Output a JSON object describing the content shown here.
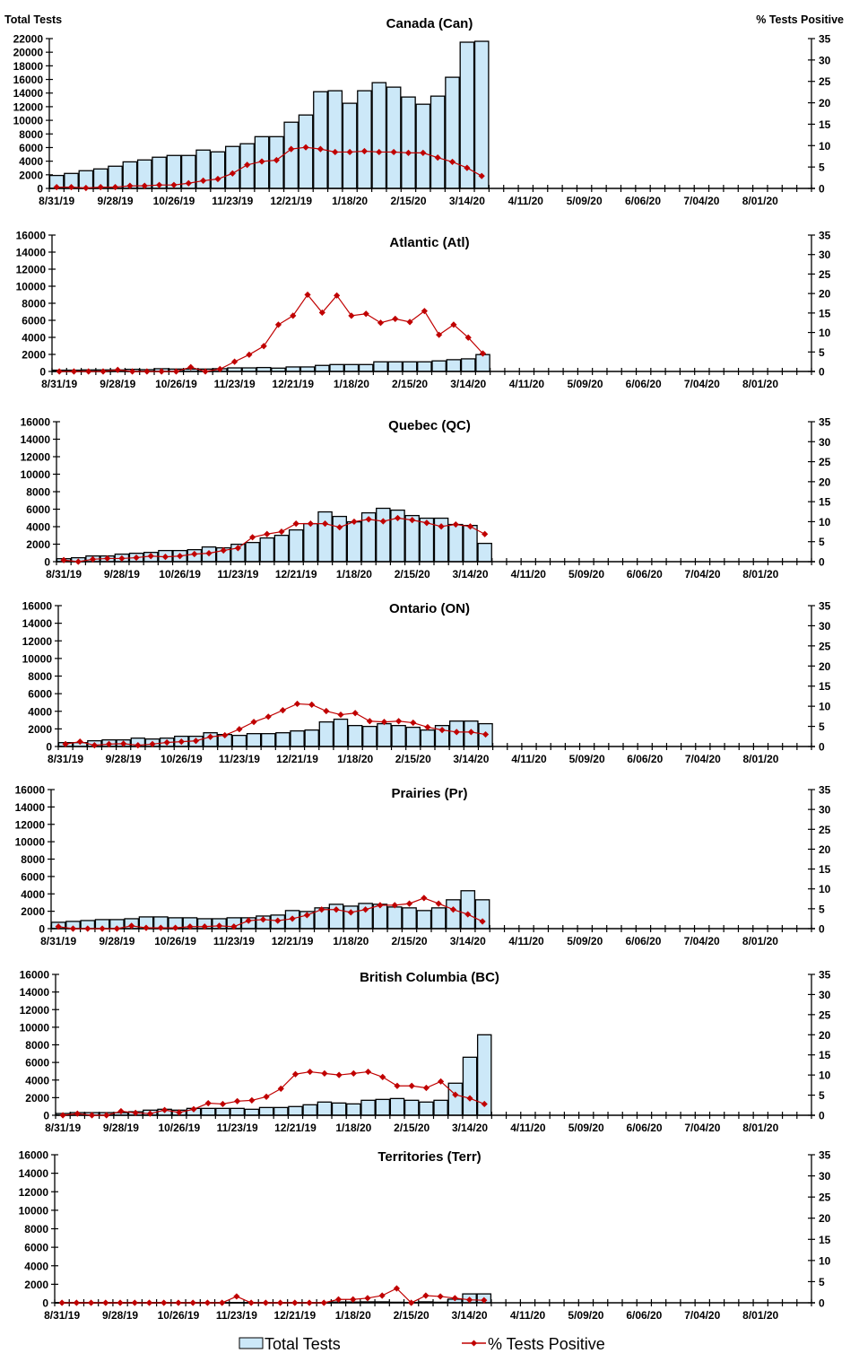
{
  "chart_data": {
    "type": "bar",
    "combo": "bar+line (dual axis)",
    "left_axis_title": "Total Tests",
    "right_axis_title": "% Tests Positive",
    "x_tick_labels": [
      "8/31/19",
      "9/28/19",
      "10/26/19",
      "11/23/19",
      "12/21/19",
      "1/18/20",
      "2/15/20",
      "3/14/20",
      "4/11/20",
      "5/09/20",
      "6/06/20",
      "7/04/20",
      "8/01/20"
    ],
    "x_week_count": 52,
    "x_label_every_weeks": 4,
    "weeks_with_data": 30,
    "right_ylim": [
      0,
      35
    ],
    "right_ticks": [
      0,
      5,
      10,
      15,
      20,
      25,
      30,
      35
    ],
    "legend": {
      "position": "bottom-center",
      "items": [
        {
          "name": "Total Tests",
          "kind": "bar",
          "color": "#cce8f8"
        },
        {
          "name": "% Tests Positive",
          "kind": "line",
          "color": "#c00000"
        }
      ]
    },
    "colors": {
      "bar_fill": "#cce8f8",
      "bar_stroke": "#000000",
      "line": "#c00000",
      "marker": "#c00000"
    },
    "panels": [
      {
        "title": "Canada (Can)",
        "ylim": [
          0,
          22000
        ],
        "y_ticks": [
          0,
          2000,
          4000,
          6000,
          8000,
          10000,
          12000,
          14000,
          16000,
          18000,
          20000,
          22000
        ],
        "total_tests": [
          1900,
          2200,
          2600,
          2860,
          3260,
          3900,
          4180,
          4580,
          4840,
          4840,
          5630,
          5370,
          6160,
          6560,
          7600,
          7600,
          9720,
          10780,
          14200,
          14340,
          12500,
          14340,
          15530,
          14870,
          13420,
          12360,
          13550,
          16320,
          21470,
          21600
        ],
        "pct_positive": [
          0.3,
          0.3,
          0.1,
          0.3,
          0.3,
          0.6,
          0.6,
          0.8,
          0.8,
          1.2,
          1.8,
          2.2,
          3.5,
          5.5,
          6.3,
          6.6,
          9.2,
          9.6,
          9.2,
          8.5,
          8.5,
          8.7,
          8.5,
          8.5,
          8.3,
          8.3,
          7.2,
          6.2,
          4.8,
          2.9
        ]
      },
      {
        "title": "Atlantic (Atl)",
        "ylim": [
          0,
          16000
        ],
        "y_ticks": [
          0,
          2000,
          4000,
          6000,
          8000,
          10000,
          12000,
          14000,
          16000
        ],
        "total_tests": [
          150,
          150,
          180,
          180,
          180,
          250,
          210,
          320,
          280,
          280,
          280,
          320,
          420,
          420,
          460,
          390,
          530,
          530,
          710,
          810,
          810,
          810,
          1130,
          1130,
          1130,
          1130,
          1240,
          1380,
          1480,
          1980
        ],
        "pct_positive": [
          0,
          0,
          0,
          0,
          0.4,
          0,
          0,
          0,
          0,
          1.1,
          0,
          0.6,
          2.5,
          4.3,
          6.5,
          12.0,
          14.3,
          19.7,
          15.1,
          19.5,
          14.3,
          14.8,
          12.5,
          13.5,
          12.7,
          15.5,
          9.4,
          12.0,
          8.7,
          4.6
        ]
      },
      {
        "title": "Quebec (QC)",
        "ylim": [
          0,
          16000
        ],
        "y_ticks": [
          0,
          2000,
          4000,
          6000,
          8000,
          10000,
          12000,
          14000,
          16000
        ],
        "total_tests": [
          340,
          450,
          650,
          650,
          860,
          960,
          1060,
          1270,
          1270,
          1370,
          1680,
          1580,
          1990,
          2190,
          2710,
          3010,
          3630,
          4350,
          5690,
          5170,
          4550,
          5580,
          6100,
          5890,
          5270,
          4970,
          4970,
          4250,
          4140,
          2090
        ],
        "pct_positive": [
          0.4,
          0,
          0.6,
          0.8,
          0.8,
          1.0,
          1.4,
          1.2,
          1.4,
          1.9,
          2.1,
          2.8,
          3.4,
          6.1,
          6.9,
          7.5,
          9.5,
          9.5,
          9.5,
          8.6,
          10.0,
          10.6,
          10.1,
          10.9,
          10.4,
          9.7,
          8.8,
          9.3,
          8.8,
          6.9
        ]
      },
      {
        "title": "Ontario (ON)",
        "ylim": [
          0,
          16000
        ],
        "y_ticks": [
          0,
          2000,
          4000,
          6000,
          8000,
          10000,
          12000,
          14000,
          16000
        ],
        "total_tests": [
          440,
          440,
          650,
          750,
          750,
          950,
          850,
          950,
          1160,
          1160,
          1560,
          1360,
          1260,
          1460,
          1460,
          1560,
          1770,
          1870,
          2790,
          3100,
          2380,
          2280,
          2590,
          2380,
          2180,
          1870,
          2380,
          2890,
          2890,
          2590
        ],
        "pct_positive": [
          0.6,
          1.2,
          0.3,
          0.6,
          0.7,
          0.3,
          0.6,
          1.0,
          1.2,
          1.4,
          2.4,
          2.8,
          4.3,
          6.1,
          7.4,
          9.0,
          10.6,
          10.4,
          8.8,
          7.9,
          8.3,
          6.3,
          6.1,
          6.3,
          5.9,
          4.8,
          4.1,
          3.6,
          3.6,
          3.0
        ]
      },
      {
        "title": "Prairies (Pr)",
        "ylim": [
          0,
          16000
        ],
        "y_ticks": [
          0,
          2000,
          4000,
          6000,
          8000,
          10000,
          12000,
          14000,
          16000
        ],
        "total_tests": [
          730,
          830,
          930,
          1040,
          1040,
          1140,
          1350,
          1350,
          1250,
          1250,
          1140,
          1140,
          1250,
          1250,
          1450,
          1560,
          2080,
          1970,
          2390,
          2800,
          2590,
          2900,
          2800,
          2490,
          2390,
          2080,
          2390,
          3320,
          4360,
          3320
        ],
        "pct_positive": [
          0.5,
          0,
          0,
          0,
          0,
          0.7,
          0.2,
          0.2,
          0.2,
          0.5,
          0.5,
          0.7,
          0.5,
          2.0,
          2.3,
          2.0,
          2.5,
          3.4,
          4.8,
          4.8,
          4.1,
          4.8,
          5.9,
          5.9,
          6.3,
          7.7,
          6.3,
          4.8,
          3.6,
          1.8
        ]
      },
      {
        "title": "British Columbia (BC)",
        "ylim": [
          0,
          16000
        ],
        "y_ticks": [
          0,
          2000,
          4000,
          6000,
          8000,
          10000,
          12000,
          14000,
          16000
        ],
        "total_tests": [
          200,
          300,
          300,
          300,
          300,
          400,
          580,
          680,
          580,
          780,
          780,
          780,
          780,
          680,
          880,
          880,
          990,
          1190,
          1500,
          1390,
          1290,
          1700,
          1800,
          1900,
          1700,
          1500,
          1700,
          3640,
          6590,
          9140
        ],
        "pct_positive": [
          0,
          0.4,
          0,
          0,
          1.0,
          0.6,
          0.4,
          1.3,
          0.7,
          1.5,
          3.0,
          2.8,
          3.5,
          3.7,
          4.6,
          6.6,
          10.2,
          10.8,
          10.4,
          10.0,
          10.4,
          10.8,
          9.5,
          7.3,
          7.3,
          6.8,
          8.4,
          5.1,
          4.2,
          2.8
        ]
      },
      {
        "title": "Territories (Terr)",
        "ylim": [
          0,
          16000
        ],
        "y_ticks": [
          0,
          2000,
          4000,
          6000,
          8000,
          10000,
          12000,
          14000,
          16000
        ],
        "total_tests": [
          20,
          20,
          20,
          20,
          20,
          20,
          20,
          20,
          20,
          20,
          20,
          20,
          30,
          20,
          20,
          20,
          20,
          20,
          20,
          80,
          80,
          100,
          100,
          60,
          40,
          100,
          60,
          390,
          960,
          960
        ],
        "pct_positive": [
          0,
          0,
          0,
          0,
          0,
          0,
          0,
          0,
          0,
          0,
          0,
          0,
          1.5,
          0,
          0,
          0,
          0,
          0,
          0,
          0.8,
          0.8,
          1.1,
          1.7,
          3.4,
          0,
          1.7,
          1.5,
          1.1,
          0.7,
          0.6
        ]
      }
    ]
  }
}
